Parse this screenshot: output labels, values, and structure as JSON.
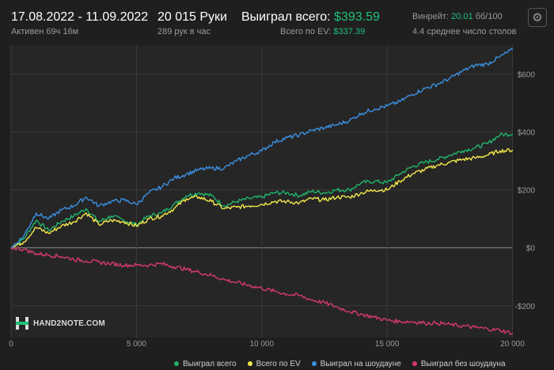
{
  "header": {
    "date_range": "17.08.2022 - 11.09.2022",
    "active": "Активен 69ч 16м",
    "hands": "20 015 Руки",
    "hands_per_hour": "289 рук в час",
    "won_label": "Выиграл всего:",
    "won_value": "$393.59",
    "ev_label": "Всего по EV:",
    "ev_value": "$337.39",
    "winrate_label": "Винрейт:",
    "winrate_value": "20.01",
    "winrate_unit": "бб/100",
    "tables": "4.4 среднее число столов",
    "settings_icon": "gear-icon"
  },
  "logo": {
    "text": "HAND2NOTE.COM"
  },
  "colors": {
    "total": "#21b36b",
    "ev": "#f2e84b",
    "showdown": "#3b8fe0",
    "non_showdown": "#d63a6a",
    "accent": "#21c07a"
  },
  "chart_data": {
    "type": "line",
    "xlim": [
      0,
      20015
    ],
    "ylim": [
      -310,
      700
    ],
    "x_ticks": [
      0,
      5000,
      10000,
      15000,
      20000
    ],
    "x_tick_labels": [
      "0",
      "5 000",
      "10 000",
      "15 000",
      "20 000"
    ],
    "y_ticks": [
      -200,
      0,
      200,
      400,
      600
    ],
    "y_tick_labels": [
      "-$200",
      "$0",
      "$200",
      "$400",
      "$600"
    ],
    "grid": true,
    "legend_position": "bottom",
    "series": [
      {
        "name": "Выиграл всего",
        "color": "#21b36b",
        "points": [
          [
            0,
            0
          ],
          [
            500,
            30
          ],
          [
            1000,
            95
          ],
          [
            1500,
            60
          ],
          [
            2000,
            90
          ],
          [
            2500,
            110
          ],
          [
            3000,
            135
          ],
          [
            3500,
            90
          ],
          [
            4000,
            110
          ],
          [
            4500,
            95
          ],
          [
            5000,
            80
          ],
          [
            5500,
            110
          ],
          [
            6000,
            120
          ],
          [
            6500,
            150
          ],
          [
            7000,
            180
          ],
          [
            7500,
            190
          ],
          [
            8000,
            180
          ],
          [
            8500,
            145
          ],
          [
            9000,
            160
          ],
          [
            9500,
            170
          ],
          [
            10000,
            175
          ],
          [
            10500,
            190
          ],
          [
            11000,
            190
          ],
          [
            11500,
            180
          ],
          [
            12000,
            195
          ],
          [
            12500,
            190
          ],
          [
            13000,
            200
          ],
          [
            13500,
            200
          ],
          [
            14000,
            225
          ],
          [
            14500,
            230
          ],
          [
            15000,
            225
          ],
          [
            15500,
            255
          ],
          [
            16000,
            280
          ],
          [
            16500,
            295
          ],
          [
            17000,
            305
          ],
          [
            17500,
            320
          ],
          [
            18000,
            335
          ],
          [
            18500,
            345
          ],
          [
            19000,
            360
          ],
          [
            19500,
            390
          ],
          [
            20015,
            393.59
          ]
        ]
      },
      {
        "name": "Всего по EV",
        "color": "#f2e84b",
        "points": [
          [
            0,
            0
          ],
          [
            500,
            20
          ],
          [
            1000,
            70
          ],
          [
            1500,
            50
          ],
          [
            2000,
            75
          ],
          [
            2500,
            90
          ],
          [
            3000,
            120
          ],
          [
            3500,
            80
          ],
          [
            4000,
            95
          ],
          [
            4500,
            90
          ],
          [
            5000,
            75
          ],
          [
            5500,
            100
          ],
          [
            6000,
            110
          ],
          [
            6500,
            135
          ],
          [
            7000,
            170
          ],
          [
            7500,
            175
          ],
          [
            8000,
            160
          ],
          [
            8500,
            135
          ],
          [
            9000,
            140
          ],
          [
            9500,
            145
          ],
          [
            10000,
            150
          ],
          [
            10500,
            160
          ],
          [
            11000,
            160
          ],
          [
            11500,
            155
          ],
          [
            12000,
            170
          ],
          [
            12500,
            165
          ],
          [
            13000,
            175
          ],
          [
            13500,
            175
          ],
          [
            14000,
            190
          ],
          [
            14500,
            200
          ],
          [
            15000,
            200
          ],
          [
            15500,
            230
          ],
          [
            16000,
            255
          ],
          [
            16500,
            270
          ],
          [
            17000,
            285
          ],
          [
            17500,
            295
          ],
          [
            18000,
            305
          ],
          [
            18500,
            310
          ],
          [
            19000,
            320
          ],
          [
            19500,
            335
          ],
          [
            20015,
            337.39
          ]
        ]
      },
      {
        "name": "Выиграл на шоудауне",
        "color": "#3b8fe0",
        "points": [
          [
            0,
            0
          ],
          [
            500,
            40
          ],
          [
            1000,
            120
          ],
          [
            1500,
            100
          ],
          [
            2000,
            130
          ],
          [
            2500,
            145
          ],
          [
            3000,
            175
          ],
          [
            3500,
            145
          ],
          [
            4000,
            160
          ],
          [
            4500,
            165
          ],
          [
            5000,
            150
          ],
          [
            5500,
            190
          ],
          [
            6000,
            210
          ],
          [
            6500,
            240
          ],
          [
            7000,
            255
          ],
          [
            7500,
            270
          ],
          [
            8000,
            275
          ],
          [
            8500,
            275
          ],
          [
            9000,
            300
          ],
          [
            9500,
            320
          ],
          [
            10000,
            335
          ],
          [
            10500,
            365
          ],
          [
            11000,
            380
          ],
          [
            11500,
            390
          ],
          [
            12000,
            405
          ],
          [
            12500,
            415
          ],
          [
            13000,
            425
          ],
          [
            13500,
            440
          ],
          [
            14000,
            465
          ],
          [
            14500,
            480
          ],
          [
            15000,
            490
          ],
          [
            15500,
            505
          ],
          [
            16000,
            530
          ],
          [
            16500,
            550
          ],
          [
            17000,
            565
          ],
          [
            17500,
            585
          ],
          [
            18000,
            610
          ],
          [
            18500,
            630
          ],
          [
            19000,
            635
          ],
          [
            19500,
            660
          ],
          [
            20015,
            685
          ]
        ]
      },
      {
        "name": "Выиграл без шоудауна",
        "color": "#d63a6a",
        "points": [
          [
            0,
            0
          ],
          [
            500,
            -5
          ],
          [
            1000,
            -20
          ],
          [
            1500,
            -25
          ],
          [
            2000,
            -30
          ],
          [
            2500,
            -40
          ],
          [
            3000,
            -45
          ],
          [
            3500,
            -50
          ],
          [
            4000,
            -55
          ],
          [
            4500,
            -60
          ],
          [
            5000,
            -60
          ],
          [
            5500,
            -60
          ],
          [
            6000,
            -55
          ],
          [
            6500,
            -65
          ],
          [
            7000,
            -75
          ],
          [
            7500,
            -85
          ],
          [
            8000,
            -95
          ],
          [
            8500,
            -110
          ],
          [
            9000,
            -120
          ],
          [
            9500,
            -130
          ],
          [
            10000,
            -140
          ],
          [
            10500,
            -150
          ],
          [
            11000,
            -160
          ],
          [
            11500,
            -165
          ],
          [
            12000,
            -180
          ],
          [
            12500,
            -190
          ],
          [
            13000,
            -205
          ],
          [
            13500,
            -220
          ],
          [
            14000,
            -230
          ],
          [
            14500,
            -240
          ],
          [
            15000,
            -250
          ],
          [
            15500,
            -255
          ],
          [
            16000,
            -255
          ],
          [
            16500,
            -260
          ],
          [
            17000,
            -260
          ],
          [
            17500,
            -265
          ],
          [
            18000,
            -270
          ],
          [
            18500,
            -275
          ],
          [
            19000,
            -280
          ],
          [
            19500,
            -285
          ],
          [
            20015,
            -295
          ]
        ]
      }
    ]
  },
  "legend": [
    {
      "label": "Выиграл всего",
      "color": "#21b36b"
    },
    {
      "label": "Всего по EV",
      "color": "#f2e84b"
    },
    {
      "label": "Выиграл на шоудауне",
      "color": "#3b8fe0"
    },
    {
      "label": "Выиграл без шоудауна",
      "color": "#d63a6a"
    }
  ]
}
